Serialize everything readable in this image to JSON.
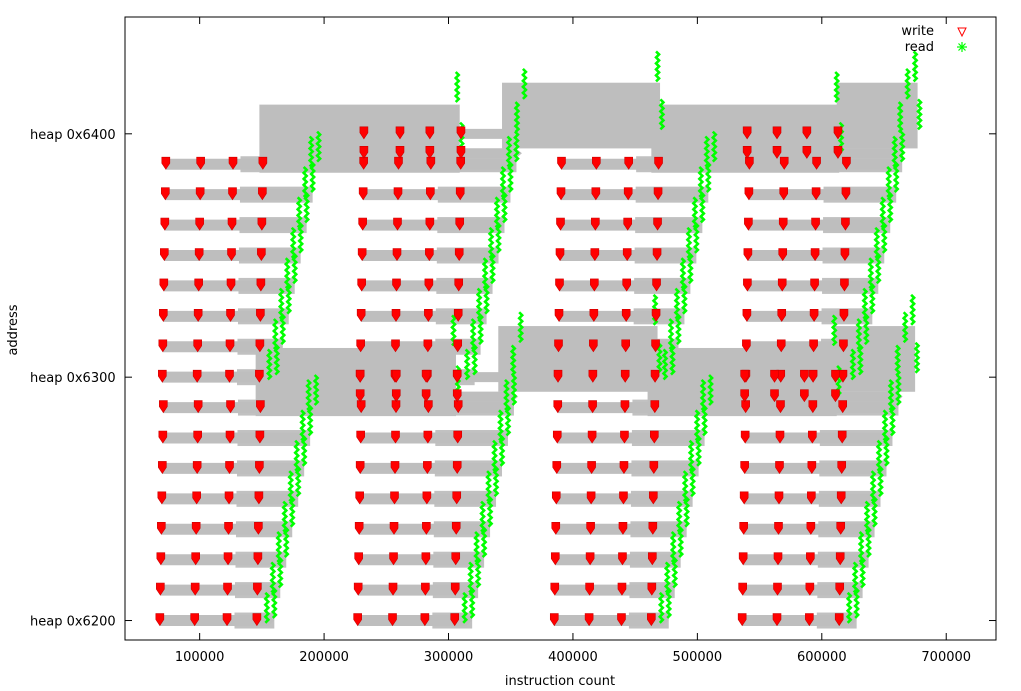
{
  "chart_data": {
    "type": "scatter",
    "title": "",
    "xlabel": "instruction count",
    "ylabel": "address",
    "xlim": [
      40000,
      740000
    ],
    "ylim": [
      -8,
      248
    ],
    "x_ticks": [
      {
        "value": 100000,
        "label": "100000"
      },
      {
        "value": 200000,
        "label": "200000"
      },
      {
        "value": 300000,
        "label": "300000"
      },
      {
        "value": 400000,
        "label": "400000"
      },
      {
        "value": 500000,
        "label": "500000"
      },
      {
        "value": 600000,
        "label": "600000"
      },
      {
        "value": 700000,
        "label": "700000"
      }
    ],
    "y_ticks": [
      {
        "value": 0,
        "label": "heap 0x6200"
      },
      {
        "value": 100,
        "label": "heap 0x6300"
      },
      {
        "value": 200,
        "label": "heap 0x6400"
      }
    ],
    "legend": {
      "placement": "top-right",
      "entries": [
        {
          "label": "write",
          "marker": "triangle-down",
          "color": "#ff0000"
        },
        {
          "label": "read",
          "marker": "star",
          "color": "#00ff00"
        }
      ]
    },
    "colors": {
      "write": "#ff0000",
      "read": "#00ff00",
      "lifetime": "#bebebe",
      "frame": "#000000"
    },
    "grid": false,
    "quadrants": [
      {
        "y_base": 0,
        "x_start": 68000,
        "row_height": 12.5
      },
      {
        "y_base": 0,
        "x_start": 227000,
        "row_height": 12.5
      },
      {
        "y_base": 0,
        "x_start": 385000,
        "row_height": 12.5
      },
      {
        "y_base": 0,
        "x_start": 536000,
        "row_height": 12.5
      },
      {
        "y_base": 100,
        "x_start": 70000,
        "row_height": 12.5
      },
      {
        "y_base": 100,
        "x_start": 229000,
        "row_height": 12.5
      },
      {
        "y_base": 100,
        "x_start": 388000,
        "row_height": 12.5
      },
      {
        "y_base": 100,
        "x_start": 539000,
        "row_height": 12.5
      }
    ],
    "row_pattern": {
      "rows": 8,
      "write_offsets": [
        0,
        28000,
        54000,
        78000
      ],
      "read_start_offset": 86000,
      "read_step": 4400,
      "read_span": 6000
    },
    "bridges": [
      {
        "x_from": 145000,
        "x_to": 306000,
        "y_lo": 84,
        "y_hi": 112
      },
      {
        "x_from": 340000,
        "x_to": 468000,
        "y_lo": 94,
        "y_hi": 121
      },
      {
        "x_from": 460000,
        "x_to": 612000,
        "y_lo": 84,
        "y_hi": 112
      },
      {
        "x_from": 610000,
        "x_to": 675000,
        "y_lo": 94,
        "y_hi": 121
      },
      {
        "x_from": 148000,
        "x_to": 309000,
        "y_lo": 184,
        "y_hi": 212
      },
      {
        "x_from": 343000,
        "x_to": 470000,
        "y_lo": 194,
        "y_hi": 221
      },
      {
        "x_from": 463000,
        "x_to": 614000,
        "y_lo": 184,
        "y_hi": 212
      },
      {
        "x_from": 612000,
        "x_to": 677000,
        "y_lo": 194,
        "y_hi": 221
      }
    ],
    "top_rows": [
      {
        "x_start": 229000,
        "y_base": 92,
        "write_offsets": [
          0,
          29000,
          53000,
          78000
        ],
        "read_at": 356000
      },
      {
        "x_start": 538000,
        "y_base": 92,
        "write_offsets": [
          0,
          24000,
          48000,
          73000
        ],
        "read_at": 665000
      },
      {
        "x_start": 232000,
        "y_base": 192,
        "write_offsets": [
          0,
          29000,
          53000,
          78000
        ],
        "read_at": 359000
      },
      {
        "x_start": 540000,
        "y_base": 192,
        "write_offsets": [
          0,
          24000,
          48000,
          73000
        ],
        "read_at": 667000
      }
    ]
  }
}
